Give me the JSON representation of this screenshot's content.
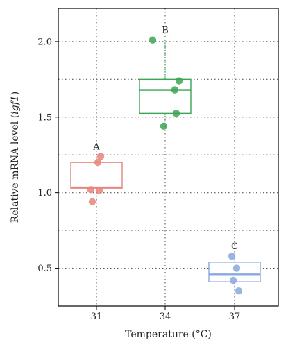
{
  "chart_data": {
    "type": "box",
    "title": "",
    "xlabel": "Temperature (°C)",
    "ylabel_prefix": "Relative mRNA level (",
    "ylabel_gene": "igf1",
    "ylabel_suffix": ")",
    "ylim": [
      0.25,
      2.22
    ],
    "y_ticks": [
      "0.5",
      "1.0",
      "1.5",
      "2.0"
    ],
    "y_tick_values": [
      0.5,
      1.0,
      1.5,
      2.0
    ],
    "y_minor_grid": [
      0.75,
      1.25,
      1.75
    ],
    "grid": true,
    "categories": [
      "31",
      "34",
      "37"
    ],
    "groups": [
      {
        "temperature": "31",
        "letter": "A",
        "color": "#e8837b",
        "q1": 1.03,
        "median": 1.035,
        "q3": 1.2,
        "whisker_low": 0.92,
        "whisker_high": 1.24,
        "points": [
          1.24,
          1.2,
          1.02,
          1.015,
          0.94
        ]
      },
      {
        "temperature": "34",
        "letter": "B",
        "color": "#3aa655",
        "q1": 1.525,
        "median": 1.68,
        "q3": 1.75,
        "whisker_low": 1.44,
        "whisker_high": 2.01,
        "points": [
          2.01,
          1.74,
          1.68,
          1.525,
          1.44
        ]
      },
      {
        "temperature": "37",
        "letter": "C",
        "color": "#8aa8de",
        "q1": 0.41,
        "median": 0.46,
        "q3": 0.54,
        "whisker_low": 0.35,
        "whisker_high": 0.58,
        "points": [
          0.58,
          0.5,
          0.42,
          0.35
        ]
      }
    ]
  }
}
